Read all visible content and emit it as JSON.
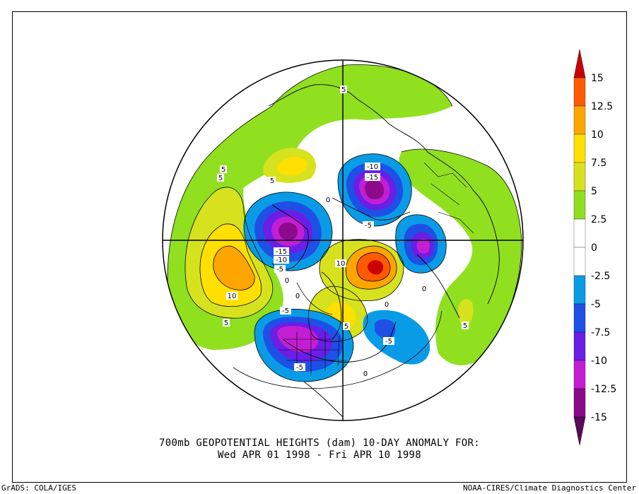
{
  "title_line_1": "700mb GEOPOTENTIAL HEIGHTS (dam)   10-DAY ANOMALY FOR:",
  "title_line_2": "Wed APR 01 1998 - Fri APR 10 1998",
  "credit_left": "GrADS: COLA/IGES",
  "credit_right": "NOAA-CIRES/Climate Diagnostics Center",
  "colorbar": {
    "levels": [
      {
        "label": "15",
        "color": "#cc0000"
      },
      {
        "label": "12.5",
        "color": "#ff5a00"
      },
      {
        "label": "10",
        "color": "#ffa500"
      },
      {
        "label": "7.5",
        "color": "#ffe000"
      },
      {
        "label": "5",
        "color": "#d6e21e"
      },
      {
        "label": "2.5",
        "color": "#90e020"
      },
      {
        "label": "0",
        "color": "#ffffff"
      },
      {
        "label": "-2.5",
        "color": "#ffffff"
      },
      {
        "label": "-5",
        "color": "#0a9be6"
      },
      {
        "label": "-7.5",
        "color": "#1e50e6"
      },
      {
        "label": "-10",
        "color": "#6a1ee6"
      },
      {
        "label": "-12.5",
        "color": "#c31ed2"
      },
      {
        "label": "-15",
        "color": "#8c0a8c"
      }
    ],
    "top_arrow_color": "#cc0000",
    "bottom_arrow_color": "#5a0a5a"
  },
  "contour_labels": [
    "5",
    "5",
    "5",
    "10",
    "5",
    "-10",
    "-15",
    "-5",
    "-15",
    "-10",
    "-5",
    "10",
    "-5",
    "-5",
    "-5",
    "5",
    "0",
    "0",
    "0",
    "0",
    "5",
    "5",
    "5",
    "0",
    "0"
  ]
}
